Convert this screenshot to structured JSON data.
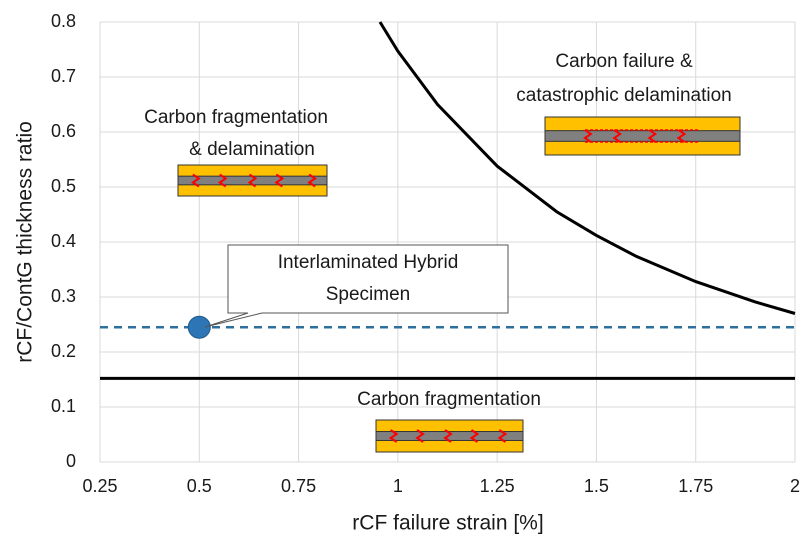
{
  "chart_data": {
    "type": "line",
    "xlabel": "rCF failure strain [%]",
    "ylabel": "rCF/ContG thickness ratio",
    "xlim": [
      0.25,
      2
    ],
    "xticks": [
      0.25,
      0.5,
      0.75,
      1,
      1.25,
      1.5,
      1.75,
      2
    ],
    "ylim": [
      0,
      0.8
    ],
    "yticks": [
      0,
      0.1,
      0.2,
      0.3,
      0.4,
      0.5,
      0.6,
      0.7,
      0.8
    ],
    "grid": true,
    "series": [
      {
        "color": "#000000",
        "style": "solid",
        "x": [
          0.955,
          1,
          1.1,
          1.25,
          1.4,
          1.5,
          1.6,
          1.75,
          1.9,
          2
        ],
        "values": [
          0.8,
          0.747,
          0.65,
          0.538,
          0.455,
          0.412,
          0.374,
          0.328,
          0.291,
          0.27
        ]
      },
      {
        "color": "#000000",
        "style": "solid",
        "x": [
          0.25,
          2
        ],
        "values": [
          0.152,
          0.152
        ]
      },
      {
        "color": "#2e6f9e",
        "style": "dashed",
        "x": [
          0.25,
          2
        ],
        "values": [
          0.245,
          0.245
        ]
      },
      {
        "color": "#2e75b6",
        "style": "marker",
        "x": [
          0.5
        ],
        "values": [
          0.245
        ]
      }
    ],
    "annotations": [
      "Carbon failure &",
      "catastrophic delamination",
      "Carbon fragmentation",
      "& delamination",
      "Interlaminated Hybrid",
      "Specimen",
      "Carbon fragmentation"
    ]
  }
}
